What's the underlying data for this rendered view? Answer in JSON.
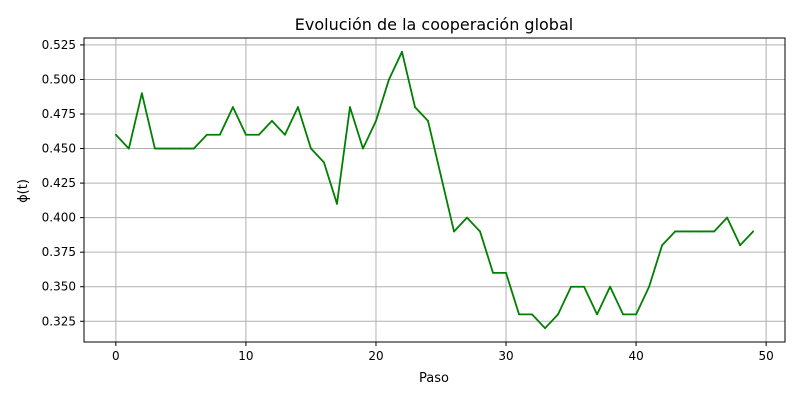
{
  "chart_data": {
    "type": "line",
    "title": "Evolución de la cooperación global",
    "xlabel": "Paso",
    "ylabel": "ϕ(t)",
    "xlim": [
      -2.45,
      51.45
    ],
    "ylim": [
      0.31,
      0.53
    ],
    "xticks": [
      0,
      10,
      20,
      30,
      40,
      50
    ],
    "xtick_labels": [
      "0",
      "10",
      "20",
      "30",
      "40",
      "50"
    ],
    "yticks": [
      0.325,
      0.35,
      0.375,
      0.4,
      0.425,
      0.45,
      0.475,
      0.5,
      0.525
    ],
    "ytick_labels": [
      "0.325",
      "0.350",
      "0.375",
      "0.400",
      "0.425",
      "0.450",
      "0.475",
      "0.500",
      "0.525"
    ],
    "grid": true,
    "series": [
      {
        "color": "#008000",
        "x": [
          0,
          1,
          2,
          3,
          4,
          5,
          6,
          7,
          8,
          9,
          10,
          11,
          12,
          13,
          14,
          15,
          16,
          17,
          18,
          19,
          20,
          21,
          22,
          23,
          24,
          25,
          26,
          27,
          28,
          29,
          30,
          31,
          32,
          33,
          34,
          35,
          36,
          37,
          38,
          39,
          40,
          41,
          42,
          43,
          44,
          45,
          46,
          47,
          48,
          49
        ],
        "values": [
          0.46,
          0.45,
          0.49,
          0.45,
          0.45,
          0.45,
          0.45,
          0.46,
          0.46,
          0.48,
          0.46,
          0.46,
          0.47,
          0.46,
          0.48,
          0.45,
          0.44,
          0.41,
          0.48,
          0.45,
          0.47,
          0.5,
          0.52,
          0.48,
          0.47,
          0.43,
          0.39,
          0.4,
          0.39,
          0.36,
          0.36,
          0.33,
          0.33,
          0.32,
          0.33,
          0.35,
          0.35,
          0.33,
          0.35,
          0.33,
          0.33,
          0.35,
          0.38,
          0.39,
          0.39,
          0.39,
          0.39,
          0.4,
          0.38,
          0.39
        ]
      }
    ]
  }
}
